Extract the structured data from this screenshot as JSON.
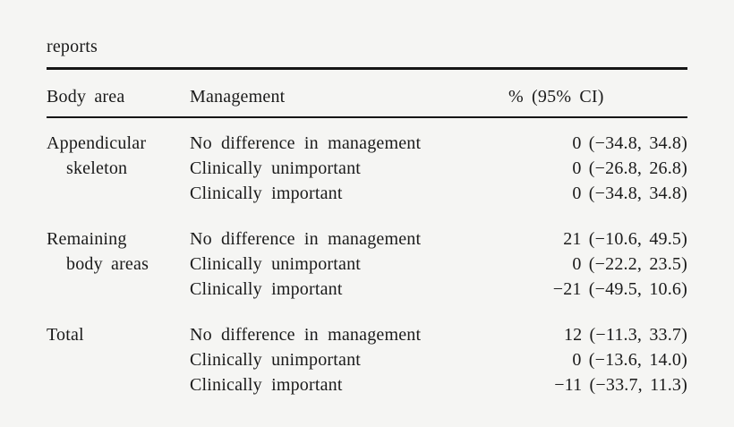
{
  "caption": "reports",
  "colors": {
    "background": "#f5f5f3",
    "text": "#1a1a1a",
    "rule": "#161616"
  },
  "table": {
    "headers": [
      "Body area",
      "Management",
      "% (95% CI)"
    ],
    "groups": [
      {
        "area_line1": "Appendicular",
        "area_line2": "skeleton",
        "rows": [
          {
            "management": "No difference in management",
            "value": "0 (−34.8, 34.8)"
          },
          {
            "management": "Clinically unimportant",
            "value": "0 (−26.8, 26.8)"
          },
          {
            "management": "Clinically important",
            "value": "0 (−34.8, 34.8)"
          }
        ]
      },
      {
        "area_line1": "Remaining",
        "area_line2": "body areas",
        "rows": [
          {
            "management": "No difference in management",
            "value": "21 (−10.6, 49.5)"
          },
          {
            "management": "Clinically unimportant",
            "value": "0 (−22.2, 23.5)"
          },
          {
            "management": "Clinically important",
            "value": "−21 (−49.5, 10.6)"
          }
        ]
      },
      {
        "area_line1": "Total",
        "area_line2": "",
        "rows": [
          {
            "management": "No difference in management",
            "value": "12 (−11.3, 33.7)"
          },
          {
            "management": "Clinically unimportant",
            "value": "0 (−13.6, 14.0)"
          },
          {
            "management": "Clinically important",
            "value": "−11 (−33.7, 11.3)"
          }
        ]
      }
    ]
  }
}
